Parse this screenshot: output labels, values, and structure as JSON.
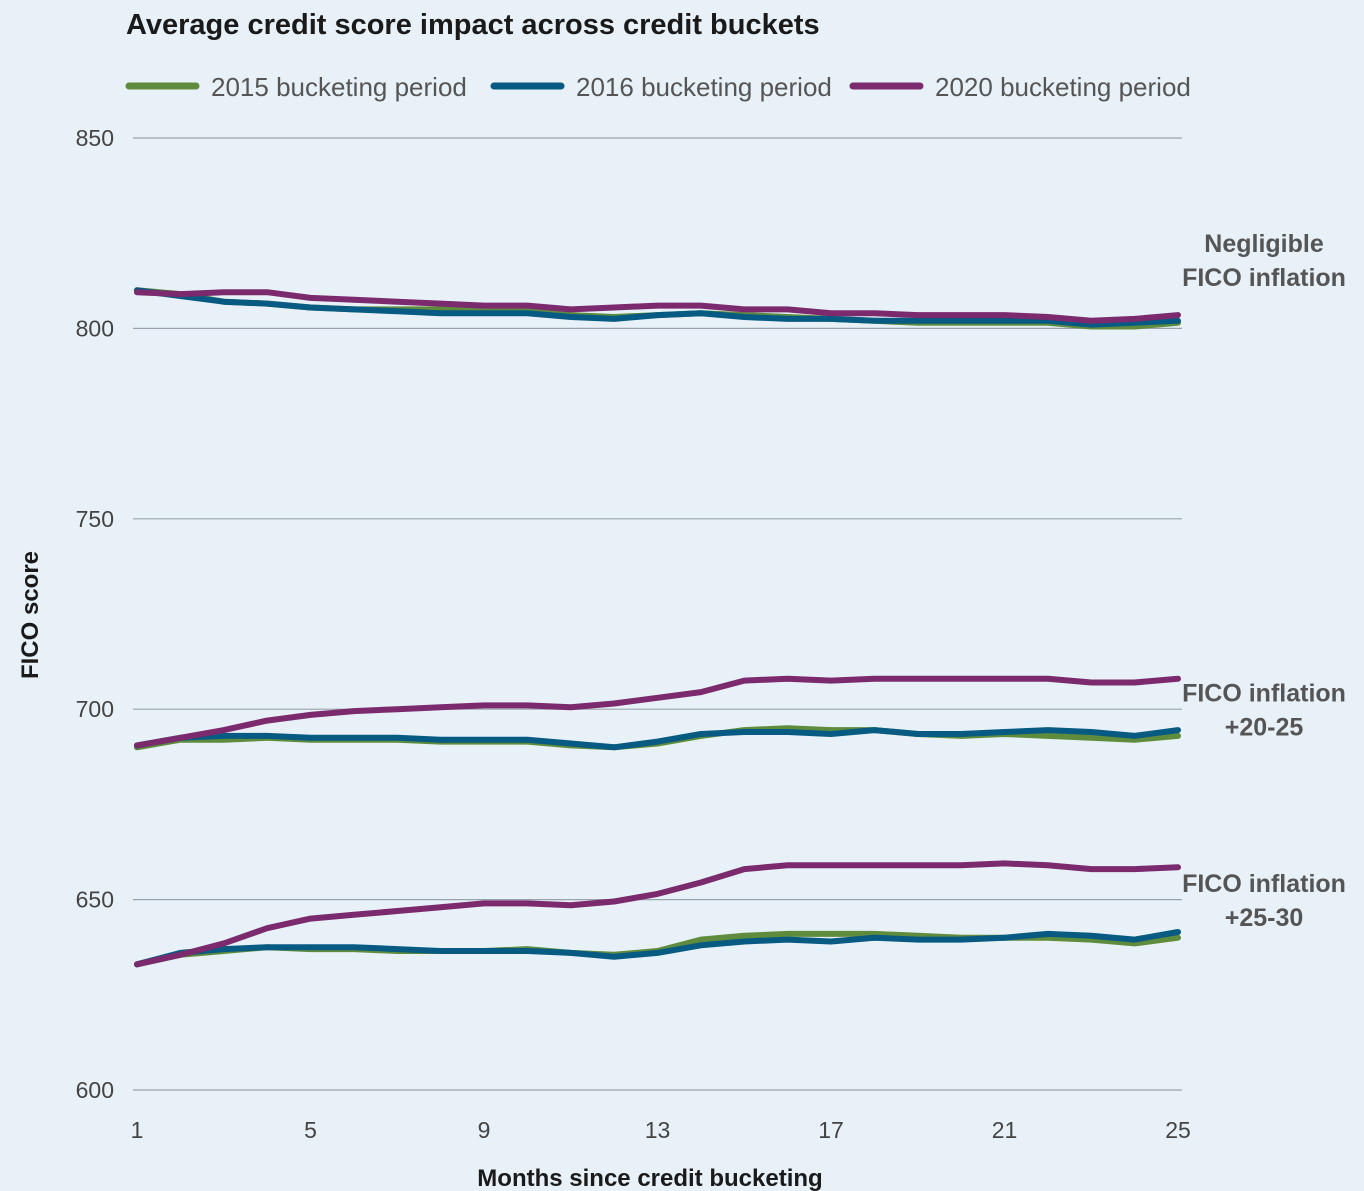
{
  "chart_data": {
    "type": "line",
    "title": "Average credit score impact across credit buckets",
    "xlabel": "Months since credit bucketing",
    "ylabel": "FICO score",
    "ylim": [
      600,
      850
    ],
    "xlim": [
      1,
      25
    ],
    "yticks": [
      "600",
      "650",
      "700",
      "750",
      "800",
      "850"
    ],
    "xticks": [
      "1",
      "5",
      "9",
      "13",
      "17",
      "21",
      "25"
    ],
    "grid": true,
    "legend_position": "top",
    "x": [
      1,
      2,
      3,
      4,
      5,
      6,
      7,
      8,
      9,
      10,
      11,
      12,
      13,
      14,
      15,
      16,
      17,
      18,
      19,
      20,
      21,
      22,
      23,
      24,
      25
    ],
    "series": [
      {
        "name": "2015 bucketing period",
        "color": "#5e8c3c",
        "groups": [
          [
            810,
            809,
            807,
            806.5,
            805.5,
            805,
            805,
            805,
            804.5,
            804.5,
            803.5,
            803,
            803.5,
            804,
            803.5,
            803,
            802.5,
            802,
            801.5,
            801.5,
            801.5,
            801.5,
            800.5,
            800.5,
            801.5
          ],
          [
            690,
            692,
            692,
            692.5,
            692,
            692,
            692,
            691.5,
            691.5,
            691.5,
            690.5,
            690,
            691,
            693,
            694.5,
            695,
            694.5,
            694.5,
            693.5,
            693,
            693.5,
            693,
            692.5,
            692,
            693
          ],
          [
            633,
            635.5,
            636.5,
            637.5,
            637,
            637,
            636.5,
            636.5,
            636.5,
            637,
            636,
            635.5,
            636.5,
            639.5,
            640.5,
            641,
            641,
            641,
            640.5,
            640,
            640,
            640,
            639.5,
            638.5,
            640
          ]
        ]
      },
      {
        "name": "2016 bucketing period",
        "color": "#075a82",
        "groups": [
          [
            810,
            808.5,
            807,
            806.5,
            805.5,
            805,
            804.5,
            804,
            804,
            804,
            803,
            802.5,
            803.5,
            804,
            803,
            802.5,
            802.5,
            802,
            802,
            802,
            802,
            802,
            801,
            801.5,
            802
          ],
          [
            690.5,
            692.5,
            693,
            693,
            692.5,
            692.5,
            692.5,
            692,
            692,
            692,
            691,
            690,
            691.5,
            693.5,
            694,
            694,
            693.5,
            694.5,
            693.5,
            693.5,
            694,
            694.5,
            694,
            693,
            694.5
          ],
          [
            633,
            636,
            637,
            637.5,
            637.5,
            637.5,
            637,
            636.5,
            636.5,
            636.5,
            636,
            635,
            636,
            638,
            639,
            639.5,
            639,
            640,
            639.5,
            639.5,
            640,
            641,
            640.5,
            639.5,
            641.5
          ]
        ]
      },
      {
        "name": "2020 bucketing period",
        "color": "#7b2a6e",
        "groups": [
          [
            809.5,
            809,
            809.5,
            809.5,
            808,
            807.5,
            807,
            806.5,
            806,
            806,
            805,
            805.5,
            806,
            806,
            805,
            805,
            804,
            804,
            803.5,
            803.5,
            803.5,
            803,
            802,
            802.5,
            803.5
          ],
          [
            690.5,
            692.5,
            694.5,
            697,
            698.5,
            699.5,
            700,
            700.5,
            701,
            701,
            700.5,
            701.5,
            703,
            704.5,
            707.5,
            708,
            707.5,
            708,
            708,
            708,
            708,
            708,
            707,
            707,
            708
          ],
          [
            633,
            635.5,
            638.5,
            642.5,
            645,
            646,
            647,
            648,
            649,
            649,
            648.5,
            649.5,
            651.5,
            654.5,
            658,
            659,
            659,
            659,
            659,
            659,
            659.5,
            659,
            658,
            658,
            658.5
          ]
        ]
      }
    ],
    "annotations": [
      {
        "lines": [
          "Negligible",
          "FICO inflation"
        ],
        "y": 820
      },
      {
        "lines": [
          "FICO inflation",
          "+20-25"
        ],
        "y": 702
      },
      {
        "lines": [
          "FICO inflation",
          "+25-30"
        ],
        "y": 652
      }
    ]
  }
}
